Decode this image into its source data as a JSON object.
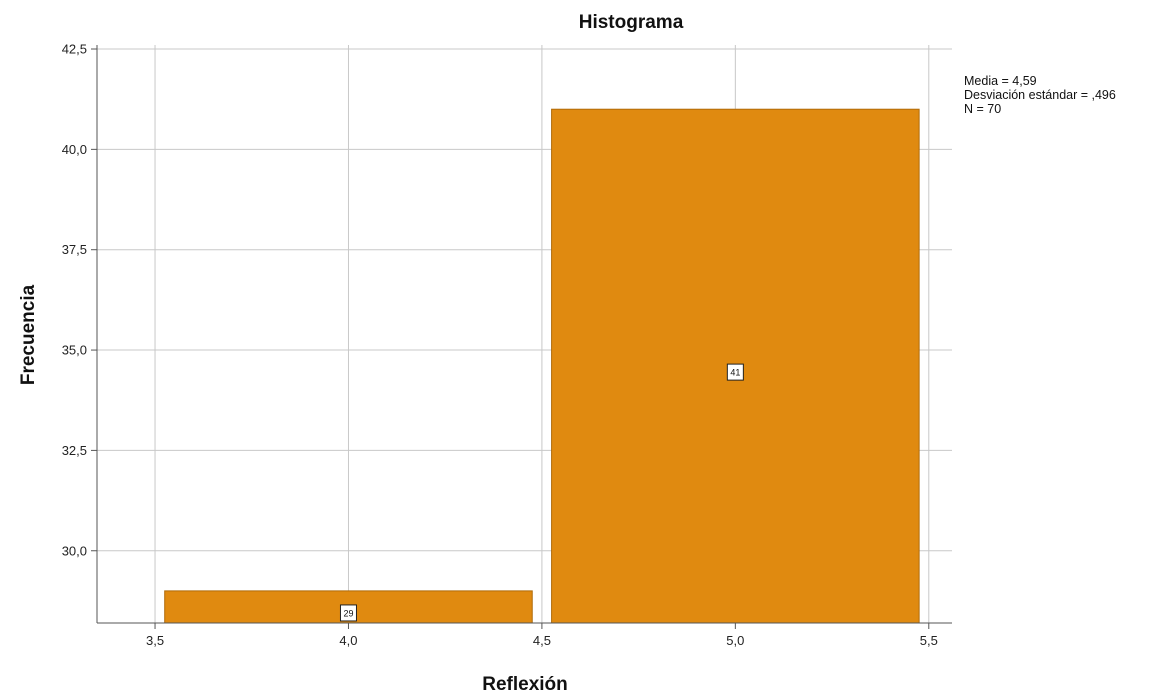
{
  "chart_data": {
    "type": "bar",
    "title": "Histograma",
    "xlabel": "Reflexión",
    "ylabel": "Frecuencia",
    "xlim": [
      3.35,
      5.56
    ],
    "ylim": [
      28.2,
      42.6
    ],
    "x_ticks": [
      3.5,
      4.0,
      4.5,
      5.0,
      5.5
    ],
    "x_tick_labels": [
      "3,5",
      "4,0",
      "4,5",
      "5,0",
      "5,5"
    ],
    "y_ticks": [
      30.0,
      32.5,
      35.0,
      37.5,
      40.0,
      42.5
    ],
    "y_tick_labels": [
      "30,0",
      "32,5",
      "35,0",
      "37,5",
      "40,0",
      "42,5"
    ],
    "bins": [
      {
        "x_start": 3.525,
        "x_end": 4.475,
        "value": 29,
        "label": "29"
      },
      {
        "x_start": 4.525,
        "x_end": 5.475,
        "value": 41,
        "label": "41"
      }
    ],
    "stats": [
      "Media = 4,59",
      "Desviación estándar = ,496",
      "N = 70"
    ],
    "grid": true,
    "bar_color": "#e08a10",
    "bar_edge_color": "#b06a08",
    "grid_color": "#c8c8c8"
  }
}
